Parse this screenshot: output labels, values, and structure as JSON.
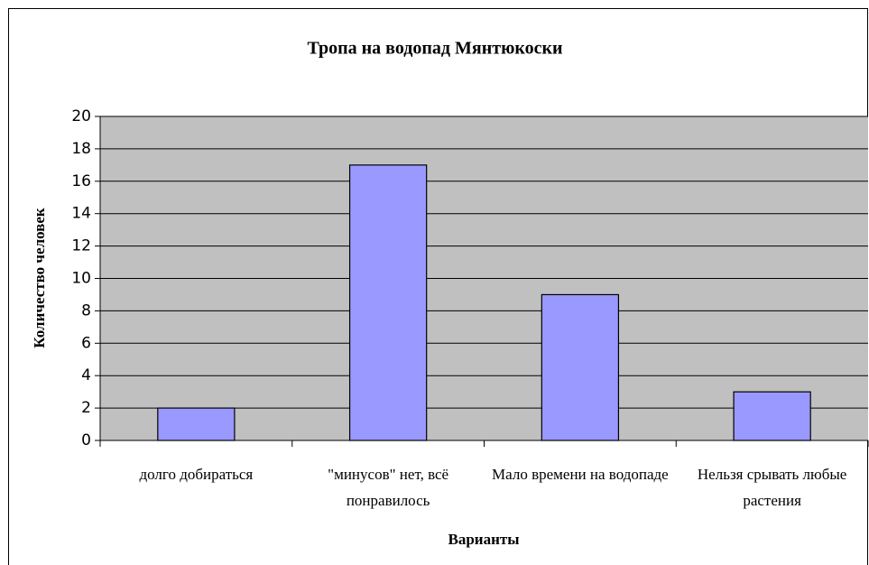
{
  "chart_data": {
    "type": "bar",
    "title": "Тропа на водопад Мянтюкоски",
    "x_label": "Варианты",
    "y_label": "Количество человек",
    "categories": [
      "долго добираться",
      "\"минусов\" нет, всё понравилось",
      "Мало времени на водопаде",
      "Нельзя срывать любые растения"
    ],
    "values": [
      2,
      17,
      9,
      3
    ],
    "color": "#9999ff",
    "ylim": [
      0,
      20
    ],
    "yticks": [
      0,
      2,
      4,
      6,
      8,
      10,
      12,
      14,
      16,
      18,
      20
    ],
    "grid": true
  }
}
